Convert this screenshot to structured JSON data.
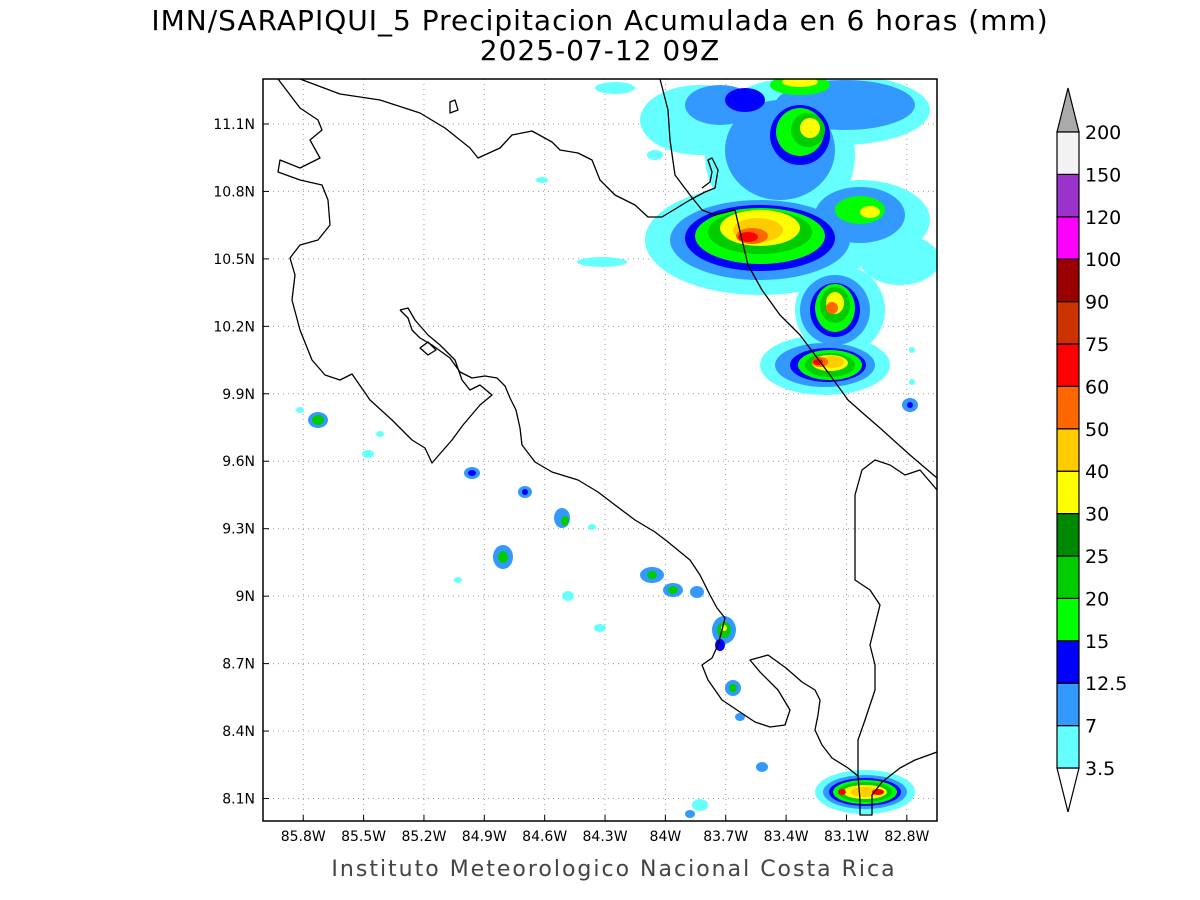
{
  "title": {
    "line1": "IMN/SARAPIQUI_5 Precipitacion Acumulada en 6 horas (mm)",
    "line2": "2025-07-12 09Z"
  },
  "credit": "Instituto Meteorologico Nacional Costa Rica",
  "map": {
    "lon_range": [
      -86.0,
      -82.65
    ],
    "lat_range": [
      8.0,
      11.3
    ],
    "lon_ticks": [
      {
        "value": -85.8,
        "label": "85.8W"
      },
      {
        "value": -85.5,
        "label": "85.5W"
      },
      {
        "value": -85.2,
        "label": "85.2W"
      },
      {
        "value": -84.9,
        "label": "84.9W"
      },
      {
        "value": -84.6,
        "label": "84.6W"
      },
      {
        "value": -84.3,
        "label": "84.3W"
      },
      {
        "value": -84.0,
        "label": "84W"
      },
      {
        "value": -83.7,
        "label": "83.7W"
      },
      {
        "value": -83.4,
        "label": "83.4W"
      },
      {
        "value": -83.1,
        "label": "83.1W"
      },
      {
        "value": -82.8,
        "label": "82.8W"
      }
    ],
    "lat_ticks": [
      {
        "value": 8.1,
        "label": "8.1N"
      },
      {
        "value": 8.4,
        "label": "8.4N"
      },
      {
        "value": 8.7,
        "label": "8.7N"
      },
      {
        "value": 9.0,
        "label": "9N"
      },
      {
        "value": 9.3,
        "label": "9.3N"
      },
      {
        "value": 9.6,
        "label": "9.6N"
      },
      {
        "value": 9.9,
        "label": "9.9N"
      },
      {
        "value": 10.2,
        "label": "10.2N"
      },
      {
        "value": 10.5,
        "label": "10.5N"
      },
      {
        "value": 10.8,
        "label": "10.8N"
      },
      {
        "value": 11.1,
        "label": "11.1N"
      }
    ],
    "grid": "dotted"
  },
  "colorbar": {
    "levels": [
      "3.5",
      "7",
      "12.5",
      "15",
      "20",
      "25",
      "30",
      "40",
      "50",
      "60",
      "75",
      "90",
      "100",
      "120",
      "150",
      "200"
    ],
    "colors": [
      "#66ffff",
      "#3399ff",
      "#0000ff",
      "#00ff00",
      "#00cc00",
      "#008800",
      "#ffff00",
      "#ffcc00",
      "#ff6600",
      "#ff0000",
      "#cc3300",
      "#990000",
      "#ff00ff",
      "#9933cc",
      "#f2f2f2",
      "#aaaaaa"
    ],
    "below_color": "#ffffff",
    "above_color": "#aaaaaa"
  }
}
